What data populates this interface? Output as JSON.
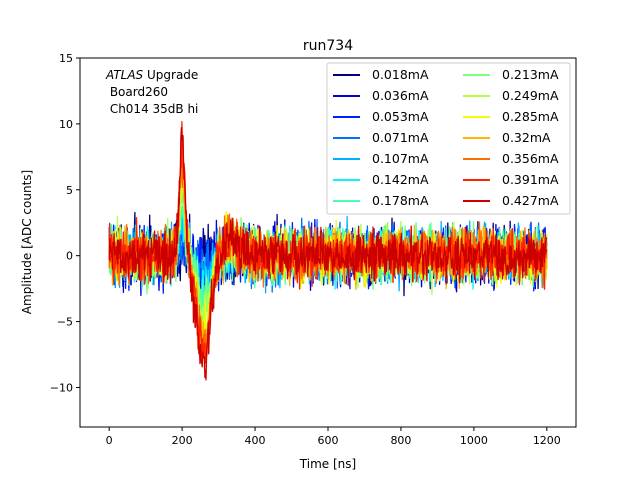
{
  "chart_data": {
    "type": "line",
    "title": "run734",
    "xlabel": "Time [ns]",
    "ylabel": "Amplitude [ADC counts]",
    "xlim": [
      -80,
      1280
    ],
    "ylim": [
      -13,
      15
    ],
    "xticks": [
      0,
      200,
      400,
      600,
      800,
      1000,
      1200
    ],
    "yticks": [
      -10,
      -5,
      0,
      5,
      10,
      15
    ],
    "grid": false,
    "legend_position": "top-right",
    "legend_columns": 2,
    "annotation": {
      "italic": "ATLAS",
      "line1_rest": " Upgrade",
      "line2": " Board260",
      "line3": " Ch014 35dB hi"
    },
    "x_range": [
      0,
      1200
    ],
    "pulse_peak_time": 200,
    "pulse_trough_time": 260,
    "series": [
      {
        "name": "0.018mA",
        "color": "#00007f",
        "noise": 1.6,
        "amp": 0.4
      },
      {
        "name": "0.036mA",
        "color": "#0000d9",
        "noise": 1.55,
        "amp": 0.8
      },
      {
        "name": "0.053mA",
        "color": "#0020ff",
        "noise": 1.5,
        "amp": 1.2
      },
      {
        "name": "0.071mA",
        "color": "#0070ff",
        "noise": 1.45,
        "amp": 1.6
      },
      {
        "name": "0.107mA",
        "color": "#00b0ff",
        "noise": 1.45,
        "amp": 2.4
      },
      {
        "name": "0.142mA",
        "color": "#0df2ff",
        "noise": 1.4,
        "amp": 3.1
      },
      {
        "name": "0.178mA",
        "color": "#4affad",
        "noise": 1.4,
        "amp": 3.9
      },
      {
        "name": "0.213mA",
        "color": "#7dff7a",
        "noise": 1.4,
        "amp": 4.6
      },
      {
        "name": "0.249mA",
        "color": "#b3ff43",
        "noise": 1.35,
        "amp": 5.4
      },
      {
        "name": "0.285mA",
        "color": "#f1fc06",
        "noise": 1.35,
        "amp": 6.1
      },
      {
        "name": "0.32mA",
        "color": "#ffb500",
        "noise": 1.35,
        "amp": 6.8
      },
      {
        "name": "0.356mA",
        "color": "#ff6c00",
        "noise": 1.35,
        "amp": 7.5
      },
      {
        "name": "0.391mA",
        "color": "#ff2400",
        "noise": 1.3,
        "amp": 8.2
      },
      {
        "name": "0.427mA",
        "color": "#cc0000",
        "noise": 1.3,
        "amp": 9.0
      }
    ]
  }
}
